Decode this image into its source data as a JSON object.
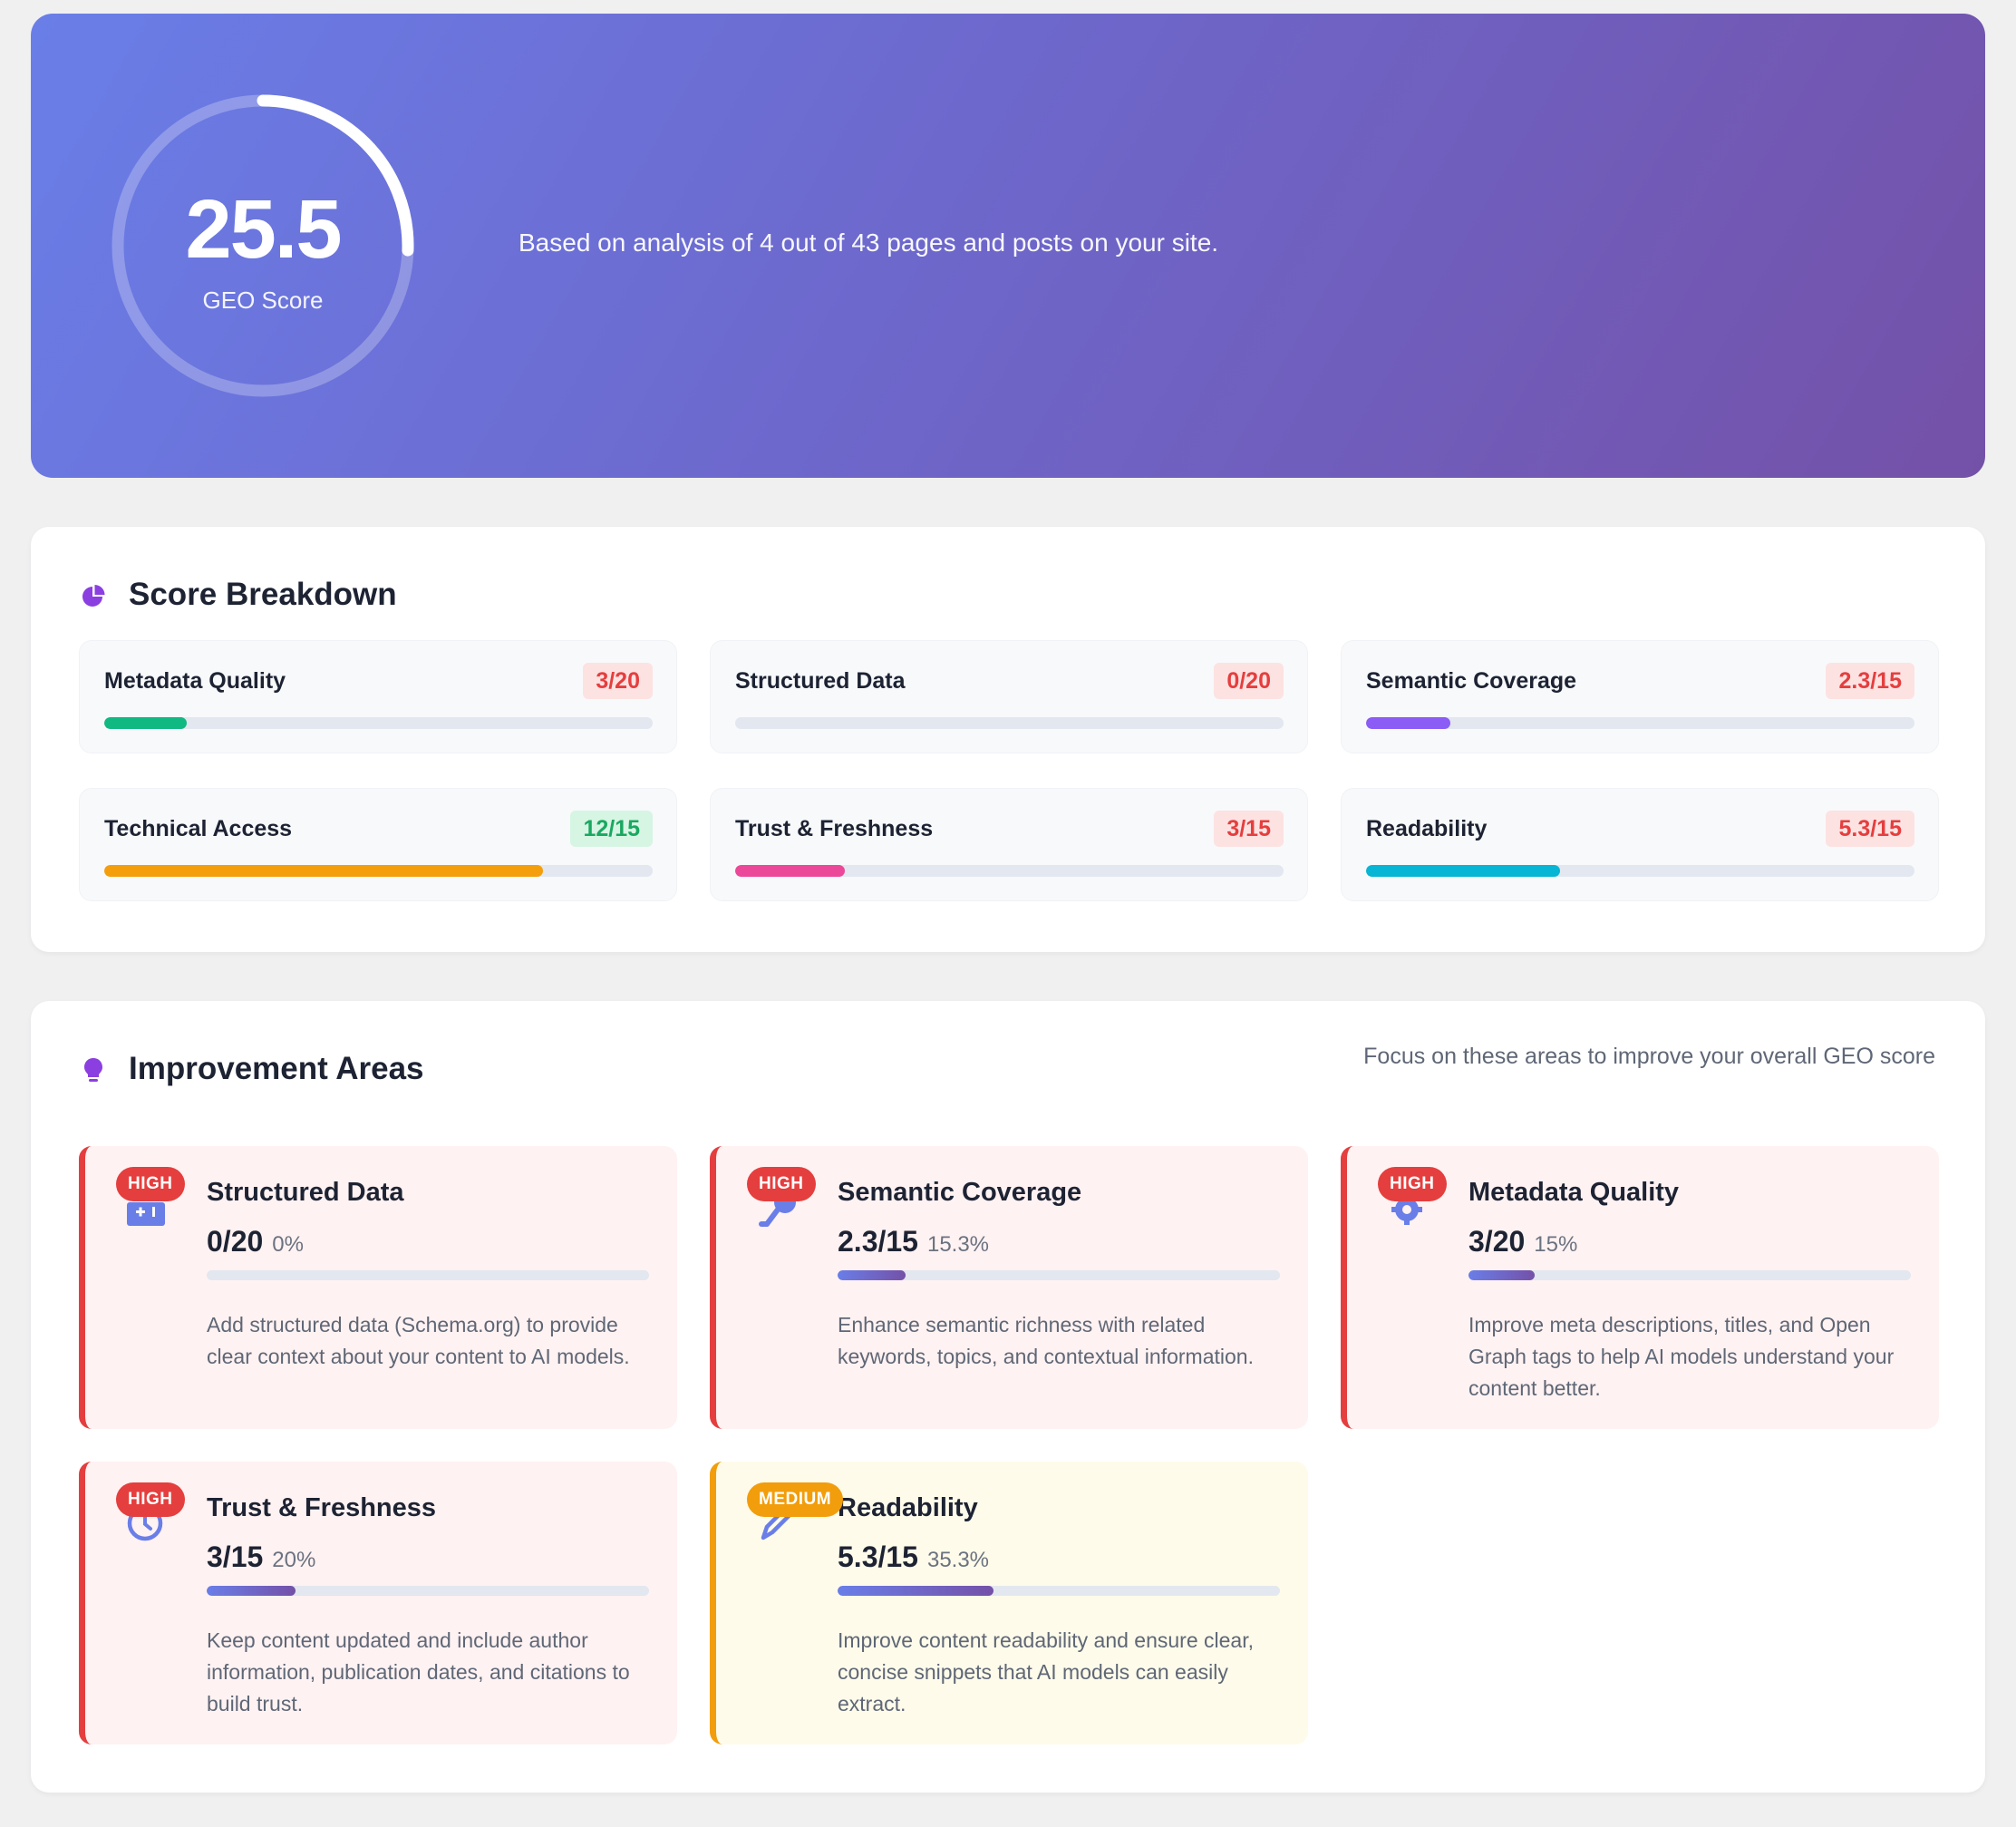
{
  "hero": {
    "score": "25.5",
    "score_label": "GEO Score",
    "score_fraction": 0.255,
    "description": "Based on analysis of 4 out of 43 pages and posts on your site."
  },
  "breakdown": {
    "title": "Score Breakdown",
    "icon": "pie-chart-icon",
    "items": [
      {
        "name": "Metadata Quality",
        "score": "3/20",
        "fraction": 0.15,
        "status": "bad",
        "color": "#10b981"
      },
      {
        "name": "Structured Data",
        "score": "0/20",
        "fraction": 0.0,
        "status": "bad",
        "color": "#6a7ee8"
      },
      {
        "name": "Semantic Coverage",
        "score": "2.3/15",
        "fraction": 0.153,
        "status": "bad",
        "color": "#8b5cf6"
      },
      {
        "name": "Technical Access",
        "score": "12/15",
        "fraction": 0.8,
        "status": "good",
        "color": "#f59e0b"
      },
      {
        "name": "Trust & Freshness",
        "score": "3/15",
        "fraction": 0.2,
        "status": "bad",
        "color": "#ec4899"
      },
      {
        "name": "Readability",
        "score": "5.3/15",
        "fraction": 0.353,
        "status": "bad",
        "color": "#06b6d4"
      }
    ]
  },
  "improvement": {
    "title": "Improvement Areas",
    "icon": "lightbulb-icon",
    "subtitle": "Focus on these areas to improve your overall GEO score",
    "items": [
      {
        "badge": "HIGH",
        "priority": "high",
        "icon": "schema-icon",
        "title": "Structured Data",
        "score": "0/20",
        "pct": "0%",
        "fraction": 0.0,
        "desc": "Add structured data (Schema.org) to provide clear context about your content to AI models."
      },
      {
        "badge": "HIGH",
        "priority": "high",
        "icon": "key-icon",
        "title": "Semantic Coverage",
        "score": "2.3/15",
        "pct": "15.3%",
        "fraction": 0.153,
        "desc": "Enhance semantic richness with related keywords, topics, and contextual information."
      },
      {
        "badge": "HIGH",
        "priority": "high",
        "icon": "gear-icon",
        "title": "Metadata Quality",
        "score": "3/20",
        "pct": "15%",
        "fraction": 0.15,
        "desc": "Improve meta descriptions, titles, and Open Graph tags to help AI models understand your content better."
      },
      {
        "badge": "HIGH",
        "priority": "high",
        "icon": "clock-icon",
        "title": "Trust & Freshness",
        "score": "3/15",
        "pct": "20%",
        "fraction": 0.2,
        "desc": "Keep content updated and include author information, publication dates, and citations to build trust."
      },
      {
        "badge": "MEDIUM",
        "priority": "medium",
        "icon": "pencil-icon",
        "title": "Readability",
        "score": "5.3/15",
        "pct": "35.3%",
        "fraction": 0.353,
        "desc": "Improve content readability and ensure clear, concise snippets that AI models can easily extract."
      }
    ]
  }
}
